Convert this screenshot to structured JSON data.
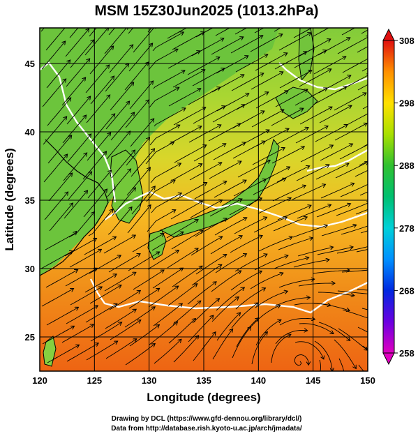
{
  "title": "MSM 15Z30Jun2025 (1013.2hPa)",
  "x_axis": {
    "label": "Longitude (degrees)",
    "ticks": [
      "120",
      "125",
      "130",
      "135",
      "140",
      "145",
      "150"
    ],
    "range": [
      120,
      150
    ]
  },
  "y_axis": {
    "label": "Latitude  (degrees)",
    "ticks": [
      "25",
      "30",
      "35",
      "40",
      "45"
    ],
    "range": [
      22.5,
      47.6
    ]
  },
  "colorbar": {
    "ticks": [
      "258",
      "268",
      "278",
      "288",
      "298",
      "308"
    ],
    "range": [
      258,
      308
    ],
    "colors": [
      "#e000c0",
      "#5000e0",
      "#0030e0",
      "#0090ff",
      "#00d8d8",
      "#00c060",
      "#30c030",
      "#b0e000",
      "#ffe000",
      "#ffa000",
      "#ff5000",
      "#e01010"
    ]
  },
  "credits": {
    "line1": "Drawing by DCL (https://www.gfd-dennou.org/library/dcl/)",
    "line2": "Data from http://database.rish.kyoto-u.ac.jp/arch/jmadata/"
  },
  "colors": {
    "ocean_south": "#ef6a14",
    "ocean_mid": "#f5a31c",
    "land": "#70c83a",
    "north_sea": "#a8d82e",
    "isotherm": "#ffffff",
    "streamline": "#000000",
    "coastline": "#000000"
  }
}
